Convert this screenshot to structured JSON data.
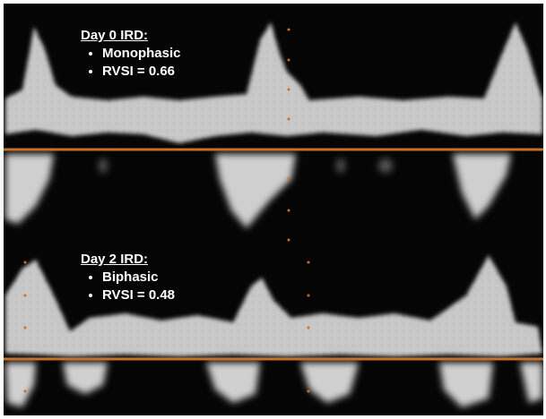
{
  "panels": [
    {
      "heading": "Day 0 IRD:",
      "items": [
        "Monophasic",
        "RVSI = 0.66"
      ]
    },
    {
      "heading": "Day 2 IRD:",
      "items": [
        "Biphasic",
        "RVSI = 0.48"
      ]
    }
  ]
}
